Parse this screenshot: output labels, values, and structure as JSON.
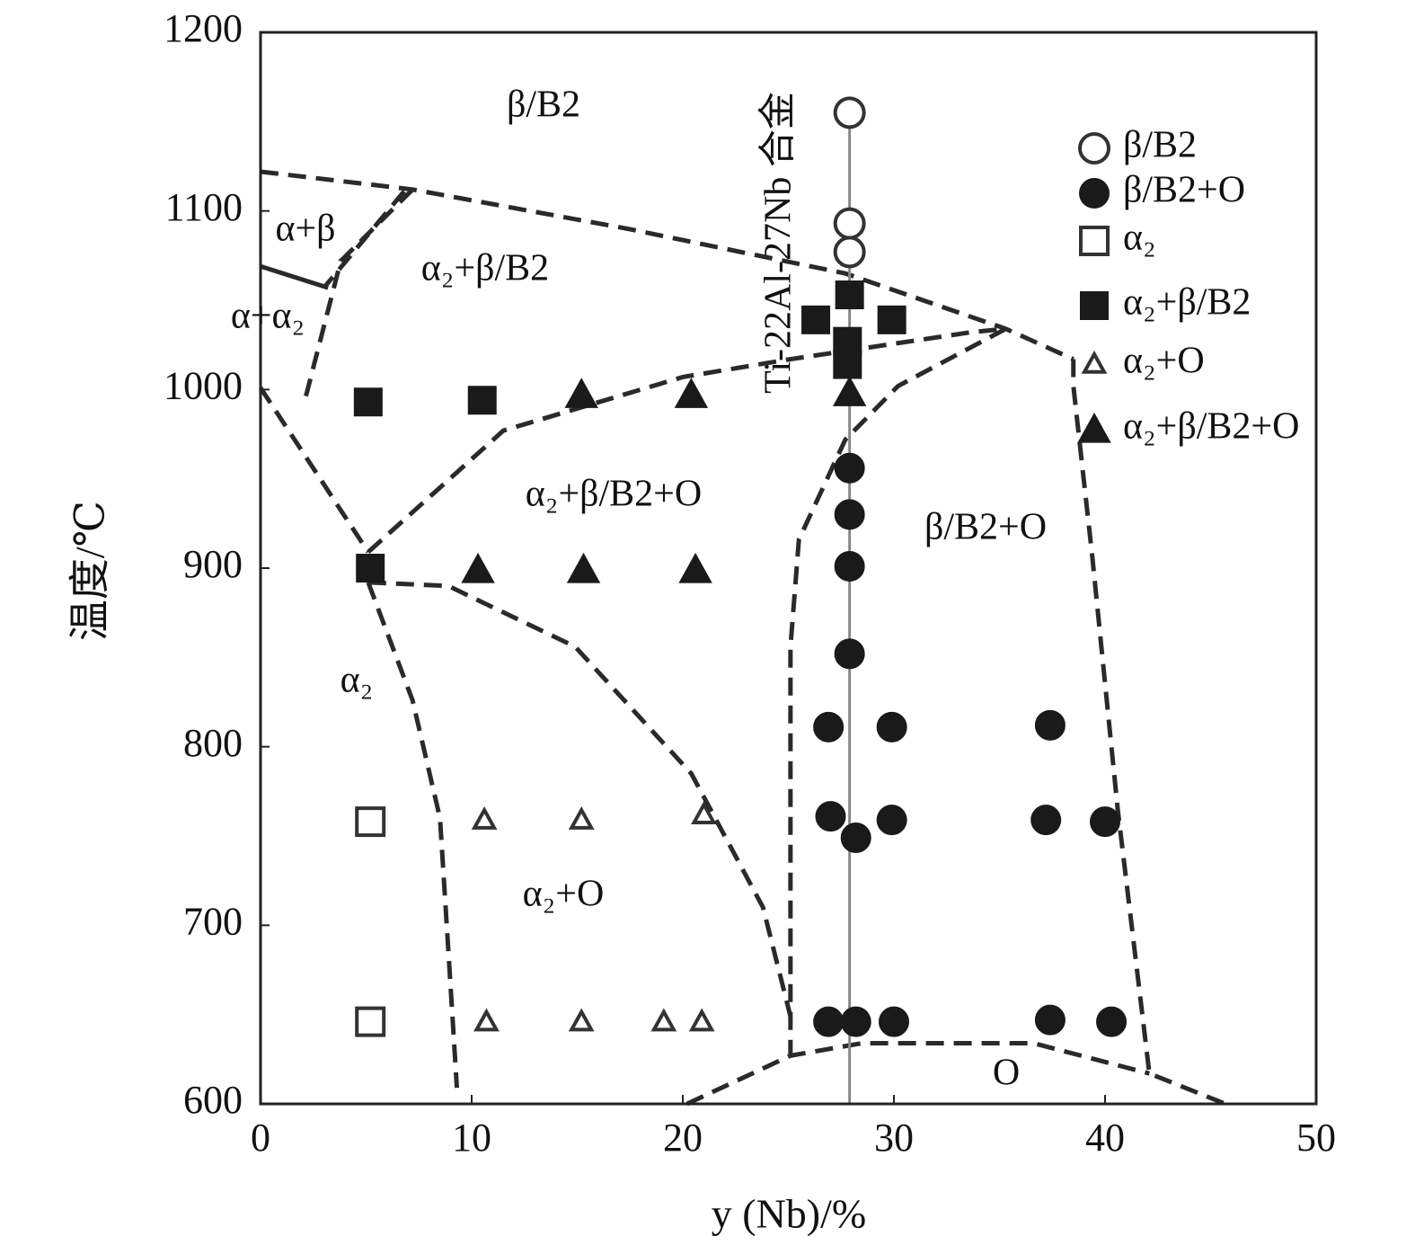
{
  "chart_data": {
    "type": "scatter",
    "xlabel": "y (Nb)/%",
    "ylabel": "温度/℃",
    "xlim": [
      0,
      50
    ],
    "ylim": [
      600,
      1200
    ],
    "xticks": [
      0,
      10,
      20,
      30,
      40,
      50
    ],
    "yticks": [
      600,
      700,
      800,
      900,
      1000,
      1100,
      1200
    ],
    "alloy_label": "Ti-22Al-27Nb 合金",
    "alloy_line": {
      "x": [
        27.9,
        27.9
      ],
      "y": [
        600,
        1155
      ],
      "color": "#888888"
    },
    "annotations": [
      "β/B2",
      "α+β",
      "α+α₂",
      "α₂+β/B2",
      "α₂+β/B2+O",
      "β/B2+O",
      "α₂",
      "α₂+O",
      "O"
    ],
    "series": [
      {
        "name": "β/B2",
        "marker": "circle",
        "filled": false,
        "color": "#333333",
        "x": [
          27.9,
          27.9,
          27.9
        ],
        "y": [
          1155,
          1093,
          1077
        ]
      },
      {
        "name": "β/B2+O",
        "marker": "circle",
        "filled": true,
        "color": "#1a1a1a",
        "x": [
          27.9,
          27.9,
          27.9,
          27.9,
          26.9,
          29.9,
          37.4,
          27.0,
          28.2,
          29.9,
          37.2,
          40.0,
          26.9,
          28.2,
          30.0,
          37.4,
          40.3
        ],
        "y": [
          956,
          930,
          901,
          852,
          811,
          811,
          812,
          761,
          749,
          759,
          759,
          758,
          646,
          646,
          646,
          647,
          646
        ]
      },
      {
        "name": "α₂",
        "marker": "square",
        "filled": false,
        "color": "#333333",
        "x": [
          5.2,
          5.2
        ],
        "y": [
          758,
          646
        ]
      },
      {
        "name": "α₂+β/B2",
        "marker": "square",
        "filled": true,
        "color": "#1a1a1a",
        "x": [
          5.1,
          10.5,
          26.3,
          27.9,
          29.9,
          27.8,
          27.8,
          5.2
        ],
        "y": [
          993,
          994,
          1039,
          1053,
          1039,
          1027,
          1014,
          900
        ]
      },
      {
        "name": "α₂+O",
        "marker": "triangle",
        "filled": false,
        "color": "#333333",
        "x": [
          10.6,
          15.2,
          21.0,
          10.7,
          15.2,
          19.1,
          20.9
        ],
        "y": [
          759,
          759,
          762,
          646,
          646,
          646,
          646
        ]
      },
      {
        "name": "α₂+β/B2+O",
        "marker": "triangle",
        "filled": true,
        "color": "#1a1a1a",
        "x": [
          15.2,
          20.4,
          27.9,
          10.3,
          15.3,
          20.6
        ],
        "y": [
          997,
          997,
          998,
          899,
          899,
          899
        ]
      }
    ],
    "boundaries": [
      {
        "style": "dashed",
        "x": [
          0,
          7.2,
          17.4,
          27.7,
          35.3,
          38.5
        ],
        "y": [
          1122,
          1112,
          1090,
          1065,
          1034,
          1017
        ]
      },
      {
        "style": "dashed",
        "x": [
          38.5,
          38.5,
          39.4,
          40.6,
          42.1,
          45.7
        ],
        "y": [
          1017,
          1002,
          906,
          765,
          617,
          600
        ]
      },
      {
        "style": "dashed",
        "x": [
          20.2,
          25.1,
          28.5,
          36.6,
          42.1
        ],
        "y": [
          600,
          627,
          634,
          634,
          617
        ]
      },
      {
        "style": "dashed",
        "x": [
          35.3,
          30.2,
          27.7,
          25.5,
          25.1,
          25.1,
          25.1
        ],
        "y": [
          1034,
          1002,
          972,
          916,
          856,
          649,
          627
        ]
      },
      {
        "style": "dashed",
        "x": [
          5.1,
          11.5,
          20.0,
          25.1,
          33.6,
          35.3
        ],
        "y": [
          909,
          977,
          1007,
          1017,
          1032,
          1034
        ]
      },
      {
        "style": "dashed",
        "x": [
          5.1,
          8.9,
          14.9,
          20.4,
          23.8,
          25.1
        ],
        "y": [
          892,
          890,
          856,
          785,
          710,
          649
        ]
      },
      {
        "style": "dashed",
        "x": [
          5.1,
          7.2,
          8.5,
          8.9,
          9.3
        ],
        "y": [
          892,
          826,
          760,
          685,
          609
        ]
      },
      {
        "style": "dashed",
        "x": [
          0,
          5.1
        ],
        "y": [
          1001,
          909
        ]
      },
      {
        "style": "dashed",
        "x": [
          7.2,
          3.8,
          2.1
        ],
        "y": [
          1112,
          1072,
          994
        ]
      },
      {
        "style": "dashed",
        "x": [
          6.8,
          3.0
        ],
        "y": [
          1111,
          1057
        ]
      },
      {
        "style": "solid",
        "x": [
          0,
          3.2
        ],
        "y": [
          1069,
          1057
        ]
      }
    ]
  }
}
